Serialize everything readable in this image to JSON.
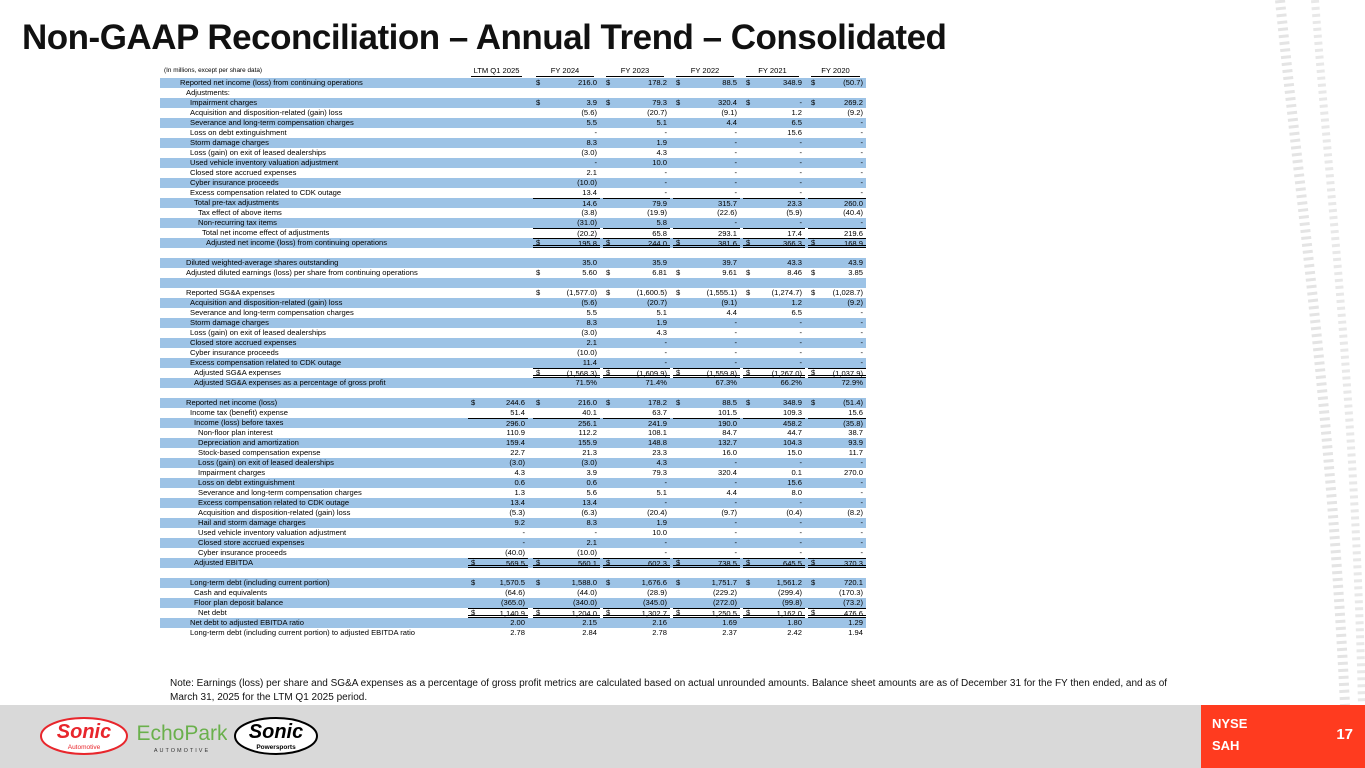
{
  "title": "Non-GAAP Reconciliation – Annual Trend – Consolidated",
  "table": {
    "unit_note": "(In millions, except per share data)",
    "columns": [
      "LTM Q1 2025",
      "FY 2024",
      "FY 2023",
      "FY 2022",
      "FY 2021",
      "FY 2020"
    ],
    "rows": [
      {
        "label": "Reported net income (loss) from continuing operations",
        "level": 0,
        "dollar": true,
        "values": [
          "",
          "216.0",
          "178.2",
          "88.5",
          "348.9",
          "(50.7)"
        ]
      },
      {
        "label": "Adjustments:",
        "level": 1,
        "values": [
          "",
          "",
          "",
          "",
          "",
          ""
        ]
      },
      {
        "label": "Impairment charges",
        "level": 2,
        "dollar": true,
        "values": [
          "",
          "3.9",
          "79.3",
          "320.4",
          "-",
          "269.2"
        ]
      },
      {
        "label": "Acquisition and disposition-related (gain) loss",
        "level": 2,
        "values": [
          "",
          "(5.6)",
          "(20.7)",
          "(9.1)",
          "1.2",
          "(9.2)"
        ]
      },
      {
        "label": "Severance and long-term compensation charges",
        "level": 2,
        "values": [
          "",
          "5.5",
          "5.1",
          "4.4",
          "6.5",
          "-"
        ]
      },
      {
        "label": "Loss on debt extinguishment",
        "level": 2,
        "values": [
          "",
          "-",
          "-",
          "-",
          "15.6",
          "-"
        ]
      },
      {
        "label": "Storm damage charges",
        "level": 2,
        "values": [
          "",
          "8.3",
          "1.9",
          "-",
          "-",
          "-"
        ]
      },
      {
        "label": "Loss (gain) on exit of leased dealerships",
        "level": 2,
        "values": [
          "",
          "(3.0)",
          "4.3",
          "-",
          "-",
          "-"
        ]
      },
      {
        "label": "Used vehicle inventory valuation adjustment",
        "level": 2,
        "values": [
          "",
          "-",
          "10.0",
          "-",
          "-",
          "-"
        ]
      },
      {
        "label": "Closed store accrued expenses",
        "level": 2,
        "values": [
          "",
          "2.1",
          "-",
          "-",
          "-",
          "-"
        ]
      },
      {
        "label": "Cyber insurance proceeds",
        "level": 2,
        "values": [
          "",
          "(10.0)",
          "-",
          "-",
          "-",
          "-"
        ]
      },
      {
        "label": "Excess compensation related to CDK outage",
        "level": 2,
        "values": [
          "",
          "13.4",
          "-",
          "-",
          "-",
          "-"
        ]
      },
      {
        "label": "Total pre-tax adjustments",
        "level": 3,
        "rule": "above",
        "values": [
          "",
          "14.6",
          "79.9",
          "315.7",
          "23.3",
          "260.0"
        ]
      },
      {
        "label": "Tax effect of above items",
        "level": 4,
        "values": [
          "",
          "(3.8)",
          "(19.9)",
          "(22.6)",
          "(5.9)",
          "(40.4)"
        ]
      },
      {
        "label": "Non-recurring tax items",
        "level": 4,
        "values": [
          "",
          "(31.0)",
          "5.8",
          "-",
          "-",
          "-"
        ]
      },
      {
        "label": "Total net income effect of adjustments",
        "level": 5,
        "rule": "above",
        "values": [
          "",
          "(20.2)",
          "65.8",
          "293.1",
          "17.4",
          "219.6"
        ]
      },
      {
        "label": "Adjusted net income (loss) from continuing operations",
        "level": 6,
        "dollar": true,
        "rule": "total",
        "values": [
          "",
          "195.8",
          "244.0",
          "381.6",
          "366.3",
          "168.9"
        ]
      },
      {
        "label": "",
        "level": 0,
        "values": [
          "",
          "",
          "",
          "",
          "",
          ""
        ]
      },
      {
        "label": "Diluted weighted-average shares outstanding",
        "level": 1,
        "values": [
          "",
          "35.0",
          "35.9",
          "39.7",
          "43.3",
          "43.9"
        ]
      },
      {
        "label": "Adjusted diluted earnings (loss) per share from continuing operations",
        "level": 1,
        "dollar": true,
        "values": [
          "",
          "5.60",
          "6.81",
          "9.61",
          "8.46",
          "3.85"
        ]
      },
      {
        "label": "",
        "level": 0,
        "values": [
          "",
          "",
          "",
          "",
          "",
          ""
        ]
      },
      {
        "label": "Reported SG&A expenses",
        "level": 1,
        "dollar": true,
        "values": [
          "",
          "(1,577.0)",
          "(1,600.5)",
          "(1,555.1)",
          "(1,274.7)",
          "(1,028.7)"
        ]
      },
      {
        "label": "Acquisition and disposition-related (gain) loss",
        "level": 2,
        "values": [
          "",
          "(5.6)",
          "(20.7)",
          "(9.1)",
          "1.2",
          "(9.2)"
        ]
      },
      {
        "label": "Severance and long-term compensation charges",
        "level": 2,
        "values": [
          "",
          "5.5",
          "5.1",
          "4.4",
          "6.5",
          "-"
        ]
      },
      {
        "label": "Storm damage charges",
        "level": 2,
        "values": [
          "",
          "8.3",
          "1.9",
          "-",
          "-",
          "-"
        ]
      },
      {
        "label": "Loss (gain) on exit of leased dealerships",
        "level": 2,
        "values": [
          "",
          "(3.0)",
          "4.3",
          "-",
          "-",
          "-"
        ]
      },
      {
        "label": "Closed store accrued expenses",
        "level": 2,
        "values": [
          "",
          "2.1",
          "-",
          "-",
          "-",
          "-"
        ]
      },
      {
        "label": "Cyber insurance proceeds",
        "level": 2,
        "values": [
          "",
          "(10.0)",
          "-",
          "-",
          "-",
          "-"
        ]
      },
      {
        "label": "Excess compensation related to CDK outage",
        "level": 2,
        "values": [
          "",
          "11.4",
          "-",
          "-",
          "-",
          "-"
        ]
      },
      {
        "label": "Adjusted SG&A expenses",
        "level": 3,
        "dollar": true,
        "rule": "total",
        "values": [
          "",
          "(1,568.3)",
          "(1,609.9)",
          "(1,559.8)",
          "(1,267.0)",
          "(1,037.9)"
        ]
      },
      {
        "label": "Adjusted SG&A expenses as a percentage of gross profit",
        "level": 3,
        "values": [
          "",
          "71.5%",
          "71.4%",
          "67.3%",
          "66.2%",
          "72.9%"
        ]
      },
      {
        "label": "",
        "level": 0,
        "values": [
          "",
          "",
          "",
          "",
          "",
          ""
        ]
      },
      {
        "label": "Reported net income (loss)",
        "level": 1,
        "dollar": true,
        "values": [
          "244.6",
          "216.0",
          "178.2",
          "88.5",
          "348.9",
          "(51.4)"
        ]
      },
      {
        "label": "Income tax (benefit) expense",
        "level": 2,
        "values": [
          "51.4",
          "40.1",
          "63.7",
          "101.5",
          "109.3",
          "15.6"
        ]
      },
      {
        "label": "Income (loss) before taxes",
        "level": 3,
        "rule": "above",
        "values": [
          "296.0",
          "256.1",
          "241.9",
          "190.0",
          "458.2",
          "(35.8)"
        ]
      },
      {
        "label": "Non-floor plan interest",
        "level": 4,
        "values": [
          "110.9",
          "112.2",
          "108.1",
          "84.7",
          "44.7",
          "38.7"
        ]
      },
      {
        "label": "Depreciation and amortization",
        "level": 4,
        "values": [
          "159.4",
          "155.9",
          "148.8",
          "132.7",
          "104.3",
          "93.9"
        ]
      },
      {
        "label": "Stock-based compensation expense",
        "level": 4,
        "values": [
          "22.7",
          "21.3",
          "23.3",
          "16.0",
          "15.0",
          "11.7"
        ]
      },
      {
        "label": "Loss (gain) on exit of leased dealerships",
        "level": 4,
        "values": [
          "(3.0)",
          "(3.0)",
          "4.3",
          "-",
          "-",
          "-"
        ]
      },
      {
        "label": "Impairment charges",
        "level": 4,
        "values": [
          "4.3",
          "3.9",
          "79.3",
          "320.4",
          "0.1",
          "270.0"
        ]
      },
      {
        "label": "Loss on debt extinguishment",
        "level": 4,
        "values": [
          "0.6",
          "0.6",
          "-",
          "-",
          "15.6",
          "-"
        ]
      },
      {
        "label": "Severance and long-term compensation charges",
        "level": 4,
        "values": [
          "1.3",
          "5.6",
          "5.1",
          "4.4",
          "8.0",
          "-"
        ]
      },
      {
        "label": "Excess compensation related to CDK outage",
        "level": 4,
        "values": [
          "13.4",
          "13.4",
          "-",
          "-",
          "-",
          "-"
        ]
      },
      {
        "label": "Acquisition and disposition-related (gain) loss",
        "level": 4,
        "values": [
          "(5.3)",
          "(6.3)",
          "(20.4)",
          "(9.7)",
          "(0.4)",
          "(8.2)"
        ]
      },
      {
        "label": "Hail and storm damage charges",
        "level": 4,
        "values": [
          "9.2",
          "8.3",
          "1.9",
          "-",
          "-",
          "-"
        ]
      },
      {
        "label": "Used vehicle inventory valuation adjustment",
        "level": 4,
        "values": [
          "-",
          "-",
          "10.0",
          "-",
          "-",
          "-"
        ]
      },
      {
        "label": "Closed store accrued expenses",
        "level": 4,
        "values": [
          "-",
          "2.1",
          "-",
          "-",
          "-",
          "-"
        ]
      },
      {
        "label": "Cyber insurance proceeds",
        "level": 4,
        "values": [
          "(40.0)",
          "(10.0)",
          "-",
          "-",
          "-",
          "-"
        ]
      },
      {
        "label": "Adjusted EBITDA",
        "level": 3,
        "dollar": true,
        "rule": "total",
        "values": [
          "569.5",
          "560.1",
          "602.3",
          "738.5",
          "645.5",
          "370.3"
        ]
      },
      {
        "label": "",
        "level": 0,
        "values": [
          "",
          "",
          "",
          "",
          "",
          ""
        ]
      },
      {
        "label": "Long-term debt (including current portion)",
        "level": 2,
        "dollar": true,
        "values": [
          "1,570.5",
          "1,588.0",
          "1,676.6",
          "1,751.7",
          "1,561.2",
          "720.1"
        ]
      },
      {
        "label": "Cash and equivalents",
        "level": 3,
        "values": [
          "(64.6)",
          "(44.0)",
          "(28.9)",
          "(229.2)",
          "(299.4)",
          "(170.3)"
        ]
      },
      {
        "label": "Floor plan deposit balance",
        "level": 3,
        "values": [
          "(365.0)",
          "(340.0)",
          "(345.0)",
          "(272.0)",
          "(99.8)",
          "(73.2)"
        ]
      },
      {
        "label": "Net debt",
        "level": 4,
        "dollar": true,
        "rule": "total",
        "values": [
          "1,140.9",
          "1,204.0",
          "1,302.7",
          "1,250.5",
          "1,162.0",
          "476.6"
        ]
      },
      {
        "label": "Net debt to adjusted EBITDA ratio",
        "level": 2,
        "values": [
          "2.00",
          "2.15",
          "2.16",
          "1.69",
          "1.80",
          "1.29"
        ]
      },
      {
        "label": "Long-term debt (including current portion) to adjusted EBITDA ratio",
        "level": 2,
        "values": [
          "2.78",
          "2.84",
          "2.78",
          "2.37",
          "2.42",
          "1.94"
        ]
      }
    ]
  },
  "note": "Note: Earnings (loss) per share and SG&A expenses as a percentage of gross profit metrics are calculated based on actual unrounded amounts. Balance sheet amounts are as of December 31 for the FY then ended, and as of March 31, 2025 for the LTM Q1 2025 period.",
  "footer": {
    "logos": [
      {
        "name": "Sonic Automotive",
        "text": "Sonic",
        "sub": "Automotive"
      },
      {
        "name": "EchoPark Automotive",
        "text": "EchoPark",
        "sub": "AUTOMOTIVE"
      },
      {
        "name": "Sonic Powersports",
        "text": "Sonic",
        "sub": "Powersports"
      }
    ],
    "exchange": "NYSE",
    "ticker": "SAH",
    "page_number": "17"
  },
  "colors": {
    "row_shade": "#9dc3e6",
    "accent_red": "#ff3b1f",
    "footer_gray": "#d9d9d9",
    "sonic_red": "#e8262c",
    "echopark_green": "#6ab04c"
  }
}
